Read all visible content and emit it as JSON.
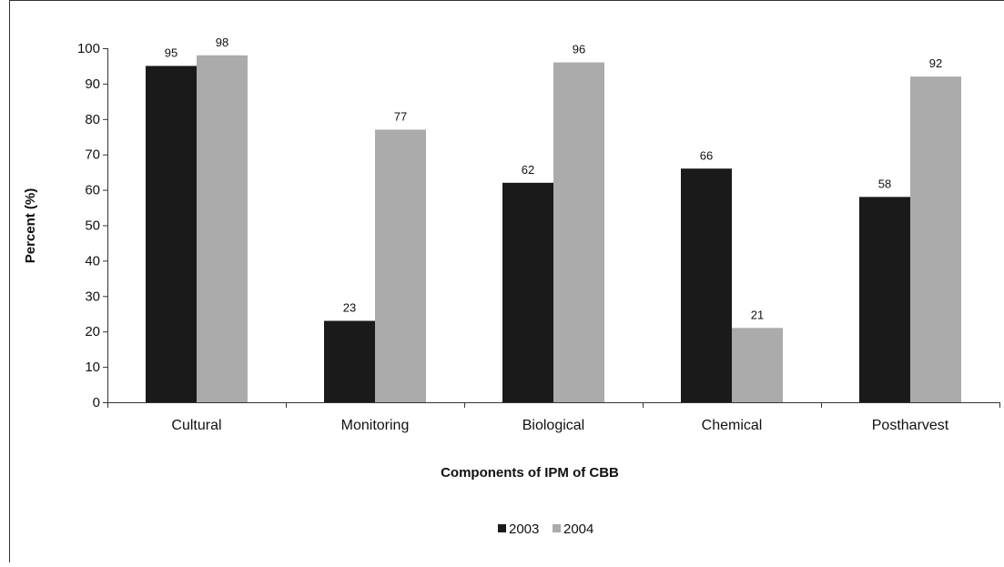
{
  "chart_data": {
    "type": "bar",
    "title": "",
    "xlabel": "Components of IPM of CBB",
    "ylabel": "Percent (%)",
    "ylim": [
      0,
      100
    ],
    "yticks": [
      0,
      10,
      20,
      30,
      40,
      50,
      60,
      70,
      80,
      90,
      100
    ],
    "categories": [
      "Cultural",
      "Monitoring",
      "Biological",
      "Chemical",
      "Postharvest"
    ],
    "series": [
      {
        "name": "2003",
        "color": "#1a1a1a",
        "values": [
          95,
          23,
          62,
          66,
          58
        ]
      },
      {
        "name": "2004",
        "color": "#ababab",
        "values": [
          98,
          77,
          96,
          21,
          92
        ]
      }
    ],
    "data_labels": true,
    "grid": false,
    "legend_position": "bottom"
  }
}
